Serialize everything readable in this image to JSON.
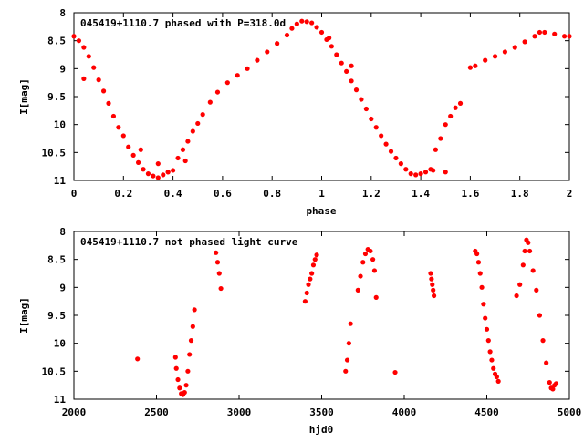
{
  "chart_data": [
    {
      "type": "scatter",
      "title": "045419+1110.7 phased with P=318.0d",
      "xlabel": "phase",
      "ylabel": "I[mag]",
      "xlim": [
        0,
        2
      ],
      "ylim": [
        8,
        11
      ],
      "y_inverted": true,
      "xticks": [
        0,
        0.2,
        0.4,
        0.6,
        0.8,
        1,
        1.2,
        1.4,
        1.6,
        1.8,
        2
      ],
      "xtick_labels": [
        "0",
        "0.2",
        "0.4",
        "0.6",
        "0.8",
        "1",
        "1.2",
        "1.4",
        "1.6",
        "1.8",
        "2"
      ],
      "yticks": [
        8,
        8.5,
        9,
        9.5,
        10,
        10.5,
        11
      ],
      "ytick_labels": [
        "8",
        "8.5",
        "9",
        "9.5",
        "10",
        "10.5",
        "11"
      ],
      "grid": false,
      "marker_color": "#ff0000",
      "series": [
        {
          "x": [
            0.0,
            0.02,
            0.04,
            0.06,
            0.08,
            0.1,
            0.12,
            0.14,
            0.16,
            0.18,
            0.2,
            0.22,
            0.24,
            0.26,
            0.28,
            0.3,
            0.32,
            0.34,
            0.36,
            0.38,
            0.4,
            0.42,
            0.44,
            0.46,
            0.48,
            0.5,
            0.52,
            0.55,
            0.58,
            0.62,
            0.66,
            0.7,
            0.74,
            0.78,
            0.82,
            0.86,
            0.88,
            0.9,
            0.92,
            0.94,
            0.96,
            0.98,
            1.0,
            1.02,
            1.04,
            1.06,
            1.08,
            1.1,
            1.12,
            1.14,
            1.16,
            1.18,
            1.2,
            1.22,
            1.24,
            1.26,
            1.28,
            1.3,
            1.32,
            1.34,
            1.36,
            1.38,
            1.4,
            1.42,
            1.44,
            1.46,
            1.48,
            1.5,
            1.52,
            1.54,
            1.56,
            1.6,
            1.62,
            1.66,
            1.7,
            1.74,
            1.78,
            1.82,
            1.86,
            1.88,
            1.9,
            1.94,
            1.98,
            2.0,
            0.04,
            0.27,
            0.34,
            0.38,
            0.45,
            1.03,
            1.12,
            1.45,
            1.5
          ],
          "y": [
            8.42,
            8.5,
            8.62,
            8.78,
            8.98,
            9.2,
            9.4,
            9.62,
            9.85,
            10.05,
            10.2,
            10.4,
            10.55,
            10.68,
            10.8,
            10.88,
            10.92,
            10.95,
            10.9,
            10.85,
            10.82,
            10.6,
            10.45,
            10.3,
            10.12,
            9.98,
            9.82,
            9.6,
            9.42,
            9.25,
            9.12,
            9.0,
            8.85,
            8.7,
            8.55,
            8.4,
            8.28,
            8.2,
            8.15,
            8.16,
            8.18,
            8.26,
            8.35,
            8.48,
            8.6,
            8.75,
            8.9,
            9.05,
            9.22,
            9.38,
            9.55,
            9.72,
            9.9,
            10.05,
            10.2,
            10.35,
            10.48,
            10.6,
            10.7,
            10.8,
            10.88,
            10.9,
            10.88,
            10.85,
            10.8,
            10.45,
            10.25,
            10.0,
            9.85,
            9.7,
            9.62,
            8.98,
            8.95,
            8.85,
            8.78,
            8.7,
            8.62,
            8.52,
            8.42,
            8.35,
            8.35,
            8.38,
            8.42,
            8.42,
            9.18,
            10.45,
            10.7,
            10.85,
            10.65,
            8.45,
            8.95,
            10.82,
            10.85
          ]
        }
      ]
    },
    {
      "type": "scatter",
      "title": "045419+1110.7 not phased light curve",
      "xlabel": "hjd0",
      "ylabel": "I[mag]",
      "xlim": [
        2000,
        5000
      ],
      "ylim": [
        8,
        11
      ],
      "y_inverted": true,
      "xticks": [
        2000,
        2500,
        3000,
        3500,
        4000,
        4500,
        5000
      ],
      "xtick_labels": [
        "2000",
        "2500",
        "3000",
        "3500",
        "4000",
        "4500",
        "5000"
      ],
      "yticks": [
        8,
        8.5,
        9,
        9.5,
        10,
        10.5,
        11
      ],
      "ytick_labels": [
        "8",
        "8.5",
        "9",
        "9.5",
        "10",
        "10.5",
        "11"
      ],
      "grid": false,
      "marker_color": "#ff0000",
      "series": [
        {
          "x": [
            2385,
            2615,
            2620,
            2630,
            2640,
            2650,
            2660,
            2670,
            2680,
            2690,
            2700,
            2710,
            2720,
            2730,
            2860,
            2870,
            2880,
            2890,
            3400,
            3410,
            3420,
            3430,
            3440,
            3450,
            3460,
            3470,
            3645,
            3655,
            3665,
            3675,
            3720,
            3735,
            3750,
            3765,
            3780,
            3795,
            3810,
            3820,
            3830,
            3945,
            4160,
            4165,
            4170,
            4175,
            4180,
            4430,
            4440,
            4450,
            4460,
            4470,
            4480,
            4490,
            4500,
            4510,
            4520,
            4530,
            4540,
            4550,
            4560,
            4570,
            4680,
            4700,
            4720,
            4730,
            4740,
            4750,
            4760,
            4780,
            4800,
            4820,
            4840,
            4860,
            4880,
            4890,
            4900,
            4910,
            4920
          ],
          "y": [
            10.28,
            10.25,
            10.45,
            10.65,
            10.8,
            10.9,
            10.92,
            10.88,
            10.75,
            10.5,
            10.2,
            9.95,
            9.7,
            9.4,
            8.38,
            8.55,
            8.75,
            9.02,
            9.25,
            9.1,
            8.95,
            8.85,
            8.75,
            8.6,
            8.5,
            8.42,
            10.5,
            10.3,
            10.0,
            9.65,
            9.05,
            8.8,
            8.55,
            8.4,
            8.32,
            8.35,
            8.5,
            8.7,
            9.18,
            10.52,
            8.75,
            8.85,
            8.95,
            9.05,
            9.15,
            8.35,
            8.4,
            8.55,
            8.75,
            9.0,
            9.3,
            9.55,
            9.75,
            9.95,
            10.15,
            10.3,
            10.45,
            10.55,
            10.6,
            10.68,
            9.15,
            8.95,
            8.6,
            8.35,
            8.15,
            8.2,
            8.35,
            8.7,
            9.05,
            9.5,
            9.95,
            10.35,
            10.7,
            10.8,
            10.82,
            10.75,
            10.72
          ]
        }
      ]
    }
  ]
}
